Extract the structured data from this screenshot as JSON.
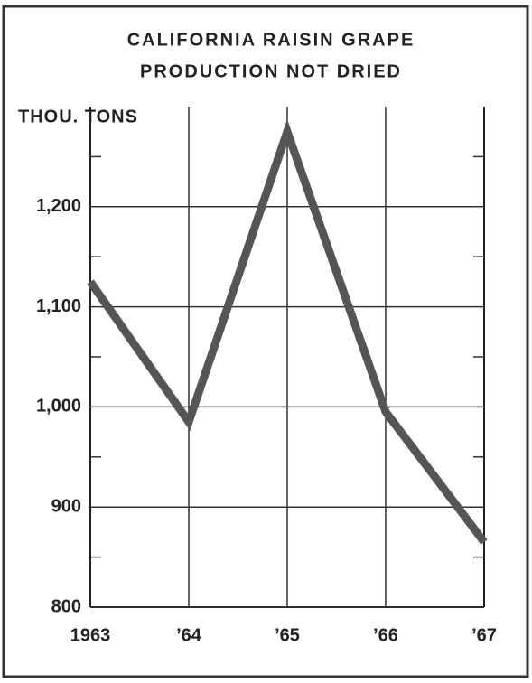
{
  "chart_data": {
    "type": "line",
    "title": "CALIFORNIA RAISIN GRAPE",
    "subtitle": "PRODUCTION NOT DRIED",
    "y_label": "THOU. TONS",
    "categories": [
      "1963",
      "’64",
      "’65",
      "’66",
      "’67"
    ],
    "series": [
      {
        "color": "#555555",
        "values": [
          1125,
          985,
          1275,
          995,
          865
        ]
      }
    ],
    "ylim": [
      800,
      1300
    ],
    "yticks": [
      800,
      900,
      {
        "value": 1000,
        "label": "1,000"
      },
      {
        "value": 1100,
        "label": "1,100"
      },
      {
        "value": 1200,
        "label": "1,200"
      }
    ],
    "minor_yticks": [
      850,
      950,
      1050,
      1150,
      1250
    ],
    "grid": true
  }
}
